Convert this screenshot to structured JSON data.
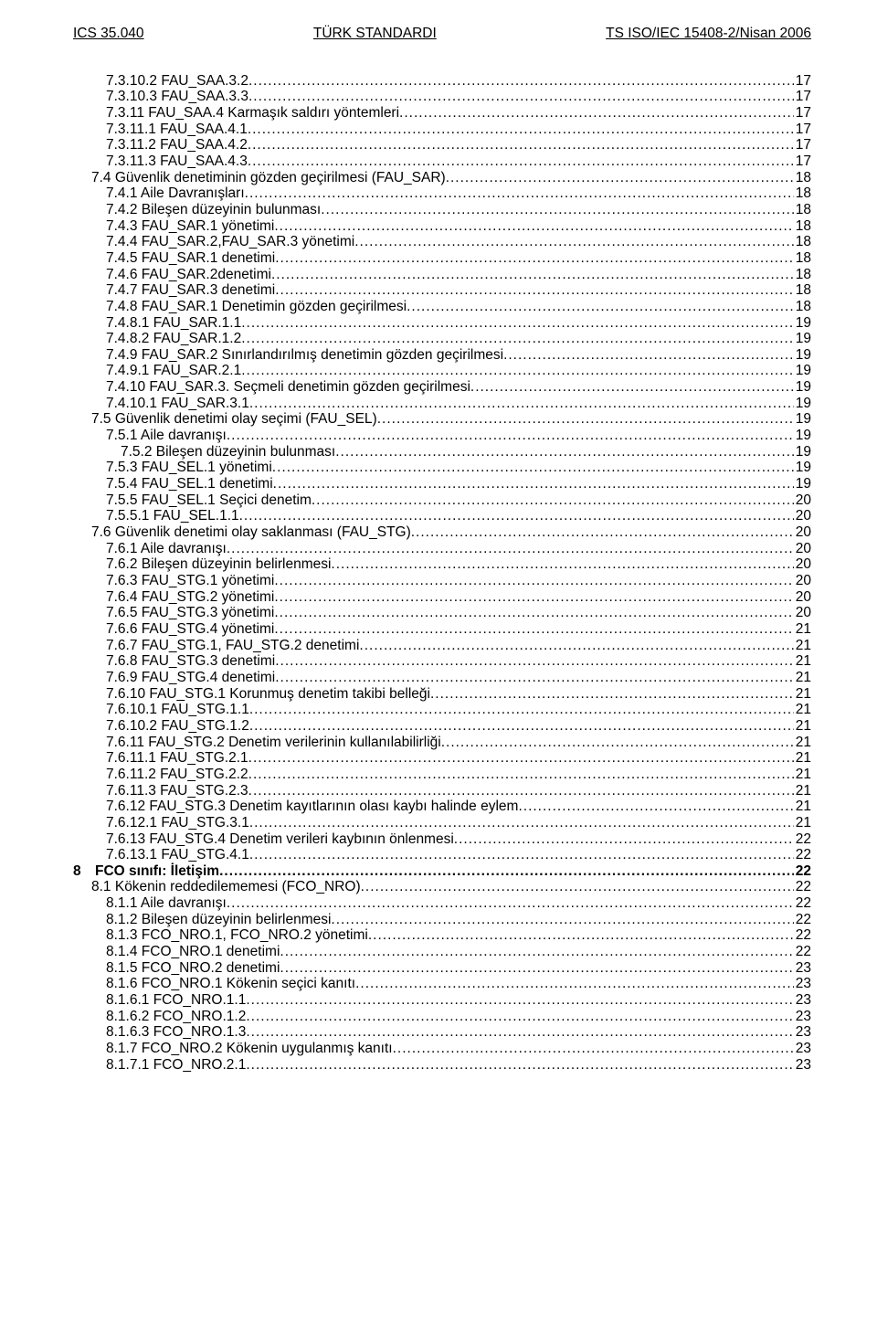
{
  "header": {
    "left": "ICS 35.040",
    "center": "TÜRK STANDARDI",
    "right": "TS ISO/IEC 15408-2/Nisan 2006"
  },
  "toc": [
    {
      "indent": 2,
      "label": "7.3.10.2 FAU_SAA.3.2",
      "page": "17"
    },
    {
      "indent": 2,
      "label": "7.3.10.3 FAU_SAA.3.3",
      "page": "17"
    },
    {
      "indent": 2,
      "label": "7.3.11 FAU_SAA.4 Karmaşık saldırı yöntemleri",
      "page": "17"
    },
    {
      "indent": 2,
      "label": "7.3.11.1 FAU_SAA.4.1",
      "page": "17"
    },
    {
      "indent": 2,
      "label": "7.3.11.2 FAU_SAA.4.2",
      "page": "17"
    },
    {
      "indent": 2,
      "label": "7.3.11.3 FAU_SAA.4.3",
      "page": "17"
    },
    {
      "indent": 1,
      "label": "7.4 Güvenlik denetiminin gözden geçirilmesi (FAU_SAR)",
      "page": "18"
    },
    {
      "indent": 2,
      "label": "7.4.1 Aile Davranışları",
      "page": "18"
    },
    {
      "indent": 2,
      "label": "7.4.2 Bileşen düzeyinin bulunması",
      "page": "18"
    },
    {
      "indent": 2,
      "label": "7.4.3 FAU_SAR.1 yönetimi",
      "page": "18"
    },
    {
      "indent": 2,
      "label": "7.4.4 FAU_SAR.2,FAU_SAR.3 yönetimi",
      "page": "18"
    },
    {
      "indent": 2,
      "label": "7.4.5 FAU_SAR.1 denetimi",
      "page": "18"
    },
    {
      "indent": 2,
      "label": "7.4.6 FAU_SAR.2denetimi",
      "page": "18"
    },
    {
      "indent": 2,
      "label": "7.4.7 FAU_SAR.3 denetimi",
      "page": "18"
    },
    {
      "indent": 2,
      "label": "7.4.8 FAU_SAR.1 Denetimin gözden geçirilmesi",
      "page": "18"
    },
    {
      "indent": 2,
      "label": "7.4.8.1 FAU_SAR.1.1",
      "page": "19"
    },
    {
      "indent": 2,
      "label": "7.4.8.2 FAU_SAR.1.2",
      "page": "19"
    },
    {
      "indent": 2,
      "label": "7.4.9 FAU_SAR.2 Sınırlandırılmış denetimin gözden geçirilmesi",
      "page": "19"
    },
    {
      "indent": 2,
      "label": "7.4.9.1 FAU_SAR.2.1",
      "page": "19"
    },
    {
      "indent": 2,
      "label": "7.4.10 FAU_SAR.3. Seçmeli denetimin gözden geçirilmesi",
      "page": "19"
    },
    {
      "indent": 2,
      "label": "7.4.10.1 FAU_SAR.3.1",
      "page": "19"
    },
    {
      "indent": 1,
      "label": "7.5 Güvenlik denetimi olay seçimi (FAU_SEL)",
      "page": "19"
    },
    {
      "indent": 2,
      "label": "7.5.1 Aile davranışı",
      "page": "19"
    },
    {
      "indent": 3,
      "label": "7.5.2 Bileşen düzeyinin bulunması",
      "page": "19"
    },
    {
      "indent": 2,
      "label": "7.5.3 FAU_SEL.1 yönetimi",
      "page": "19"
    },
    {
      "indent": 2,
      "label": "7.5.4 FAU_SEL.1 denetimi",
      "page": "19"
    },
    {
      "indent": 2,
      "label": "7.5.5 FAU_SEL.1 Seçici denetim",
      "page": "20"
    },
    {
      "indent": 2,
      "label": "7.5.5.1 FAU_SEL.1.1",
      "page": "20"
    },
    {
      "indent": 1,
      "label": "7.6 Güvenlik denetimi olay saklanması (FAU_STG)",
      "page": "20"
    },
    {
      "indent": 2,
      "label": "7.6.1 Aile davranışı",
      "page": "20"
    },
    {
      "indent": 2,
      "label": "7.6.2 Bileşen düzeyinin belirlenmesi",
      "page": "20"
    },
    {
      "indent": 2,
      "label": "7.6.3 FAU_STG.1 yönetimi",
      "page": "20"
    },
    {
      "indent": 2,
      "label": "7.6.4 FAU_STG.2 yönetimi",
      "page": "20"
    },
    {
      "indent": 2,
      "label": "7.6.5 FAU_STG.3 yönetimi",
      "page": "20"
    },
    {
      "indent": 2,
      "label": "7.6.6 FAU_STG.4 yönetimi",
      "page": "21"
    },
    {
      "indent": 2,
      "label": "7.6.7 FAU_STG.1, FAU_STG.2 denetimi",
      "page": "21"
    },
    {
      "indent": 2,
      "label": "7.6.8 FAU_STG.3 denetimi",
      "page": "21"
    },
    {
      "indent": 2,
      "label": "7.6.9 FAU_STG.4 denetimi",
      "page": "21"
    },
    {
      "indent": 2,
      "label": "7.6.10 FAU_STG.1 Korunmuş denetim takibi belleği",
      "page": "21"
    },
    {
      "indent": 2,
      "label": "7.6.10.1 FAU_STG.1.1",
      "page": "21"
    },
    {
      "indent": 2,
      "label": "7.6.10.2 FAU_STG.1.2",
      "page": "21"
    },
    {
      "indent": 2,
      "label": "7.6.11 FAU_STG.2 Denetim verilerinin kullanılabilirliği",
      "page": "21"
    },
    {
      "indent": 2,
      "label": "7.6.11.1 FAU_STG.2.1",
      "page": "21"
    },
    {
      "indent": 2,
      "label": "7.6.11.2 FAU_STG.2.2",
      "page": "21"
    },
    {
      "indent": 2,
      "label": "7.6.11.3 FAU_STG.2.3",
      "page": "21"
    },
    {
      "indent": 2,
      "label": "7.6.12 FAU_STG.3 Denetim kayıtlarının olası kaybı halinde eylem",
      "page": "21"
    },
    {
      "indent": 2,
      "label": "7.6.12.1 FAU_STG.3.1",
      "page": "21"
    },
    {
      "indent": 2,
      "label": "7.6.13 FAU_STG.4 Denetim verileri kaybının önlenmesi",
      "page": "22"
    },
    {
      "indent": 2,
      "label": "7.6.13.1 FAU_STG.4.1",
      "page": "22"
    },
    {
      "indent": 0,
      "num": "8",
      "label": "FCO sınıfı: İletişim",
      "page": "22",
      "bold": true
    },
    {
      "indent": 1,
      "label": "8.1 Kökenin reddedilememesi (FCO_NRO)",
      "page": "22"
    },
    {
      "indent": 2,
      "label": "8.1.1 Aile davranışı",
      "page": "22"
    },
    {
      "indent": 2,
      "label": "8.1.2 Bileşen düzeyinin belirlenmesi",
      "page": "22"
    },
    {
      "indent": 2,
      "label": "8.1.3 FCO_NRO.1, FCO_NRO.2 yönetimi",
      "page": "22"
    },
    {
      "indent": 2,
      "label": "8.1.4 FCO_NRO.1 denetimi",
      "page": "22"
    },
    {
      "indent": 2,
      "label": "8.1.5 FCO_NRO.2 denetimi",
      "page": "23"
    },
    {
      "indent": 2,
      "label": "8.1.6 FCO_NRO.1  Kökenin seçici kanıtı",
      "page": "23"
    },
    {
      "indent": 2,
      "label": "8.1.6.1 FCO_NRO.1.1",
      "page": "23"
    },
    {
      "indent": 2,
      "label": "8.1.6.2 FCO_NRO.1.2",
      "page": "23"
    },
    {
      "indent": 2,
      "label": "8.1.6.3 FCO_NRO.1.3",
      "page": "23"
    },
    {
      "indent": 2,
      "label": "8.1.7 FCO_NRO.2 Kökenin uygulanmış kanıtı",
      "page": "23"
    },
    {
      "indent": 2,
      "label": "8.1.7.1 FCO_NRO.2.1",
      "page": "23"
    }
  ]
}
